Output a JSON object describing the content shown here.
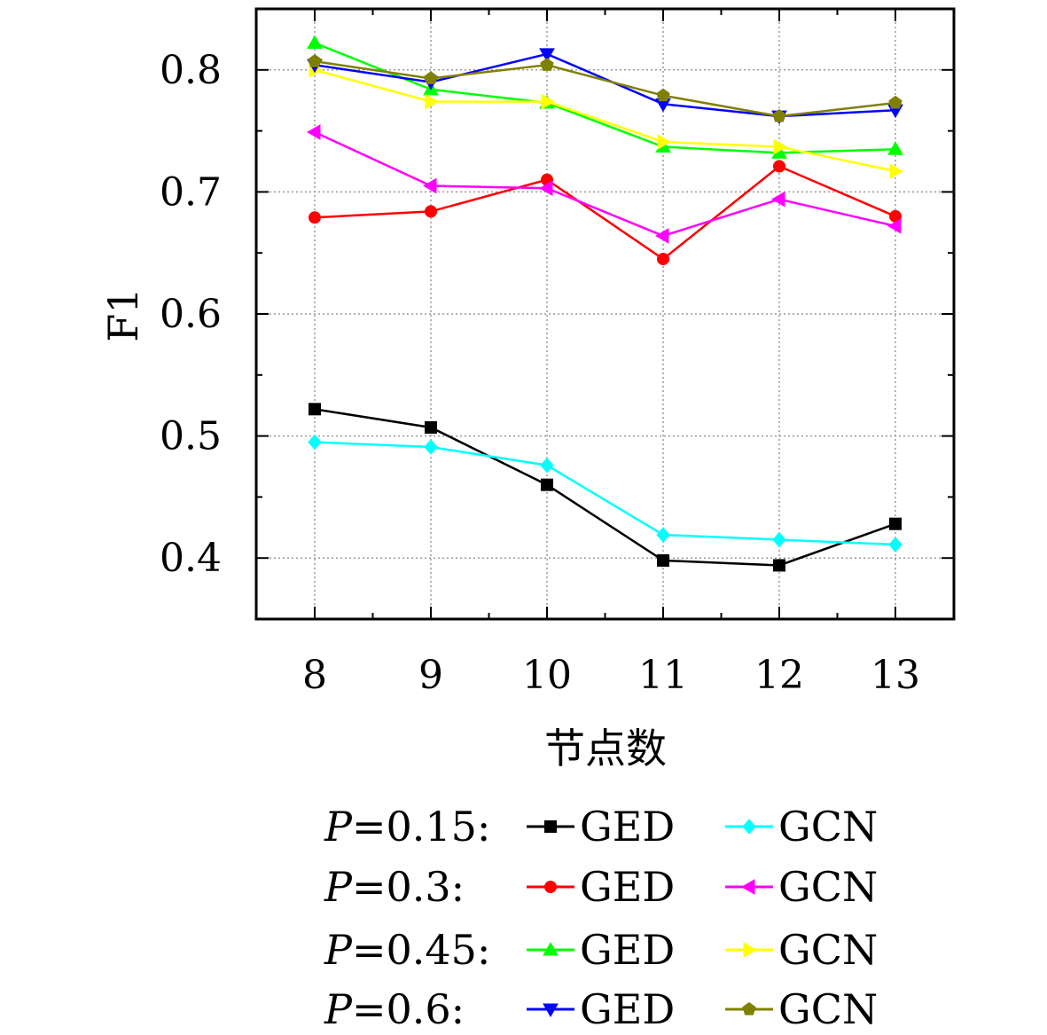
{
  "chart_data": {
    "type": "line",
    "ylabel": "F1",
    "xlabel": "节点数",
    "categories": [
      "8",
      "9",
      "10",
      "11",
      "12",
      "13"
    ],
    "x": [
      8,
      9,
      10,
      11,
      12,
      13
    ],
    "ylim": [
      0.35,
      0.85
    ],
    "yticks": [
      0.4,
      0.5,
      0.6,
      0.7,
      0.8
    ],
    "ytick_labels": [
      "0.4",
      "0.5",
      "0.6",
      "0.7",
      "0.8"
    ],
    "grid": true,
    "legend_position": "bottom",
    "legend_rows": [
      {
        "label": "P=0.15:",
        "p_symbol": "P",
        "p_value": "=0.15:"
      },
      {
        "label": "P=0.3:",
        "p_symbol": "P",
        "p_value": "=0.3:"
      },
      {
        "label": "P=0.45:",
        "p_symbol": "P",
        "p_value": "=0.45:"
      },
      {
        "label": "P=0.6:",
        "p_symbol": "P",
        "p_value": "=0.6:"
      }
    ],
    "series": [
      {
        "name": "GED",
        "group": "P=0.15",
        "color": "#000000",
        "marker": "square",
        "values": [
          0.522,
          0.507,
          0.46,
          0.398,
          0.394,
          0.428
        ]
      },
      {
        "name": "GCN",
        "group": "P=0.15",
        "color": "#00ffff",
        "marker": "diamond",
        "values": [
          0.495,
          0.491,
          0.476,
          0.419,
          0.415,
          0.411
        ]
      },
      {
        "name": "GED",
        "group": "P=0.3",
        "color": "#ff0000",
        "marker": "circle",
        "values": [
          0.679,
          0.684,
          0.71,
          0.645,
          0.721,
          0.68
        ]
      },
      {
        "name": "GCN",
        "group": "P=0.3",
        "color": "#ff00ff",
        "marker": "triangle-left",
        "values": [
          0.749,
          0.705,
          0.703,
          0.664,
          0.694,
          0.672
        ]
      },
      {
        "name": "GED",
        "group": "P=0.45",
        "color": "#00ff00",
        "marker": "triangle-up",
        "values": [
          0.822,
          0.784,
          0.773,
          0.737,
          0.732,
          0.735
        ]
      },
      {
        "name": "GCN",
        "group": "P=0.45",
        "color": "#ffff00",
        "marker": "triangle-right",
        "values": [
          0.8,
          0.774,
          0.774,
          0.741,
          0.737,
          0.717
        ]
      },
      {
        "name": "GED",
        "group": "P=0.6",
        "color": "#0000ff",
        "marker": "triangle-down",
        "values": [
          0.804,
          0.79,
          0.813,
          0.772,
          0.762,
          0.767
        ]
      },
      {
        "name": "GCN",
        "group": "P=0.6",
        "color": "#808000",
        "marker": "pentagon",
        "values": [
          0.807,
          0.793,
          0.804,
          0.779,
          0.762,
          0.773
        ]
      }
    ]
  }
}
